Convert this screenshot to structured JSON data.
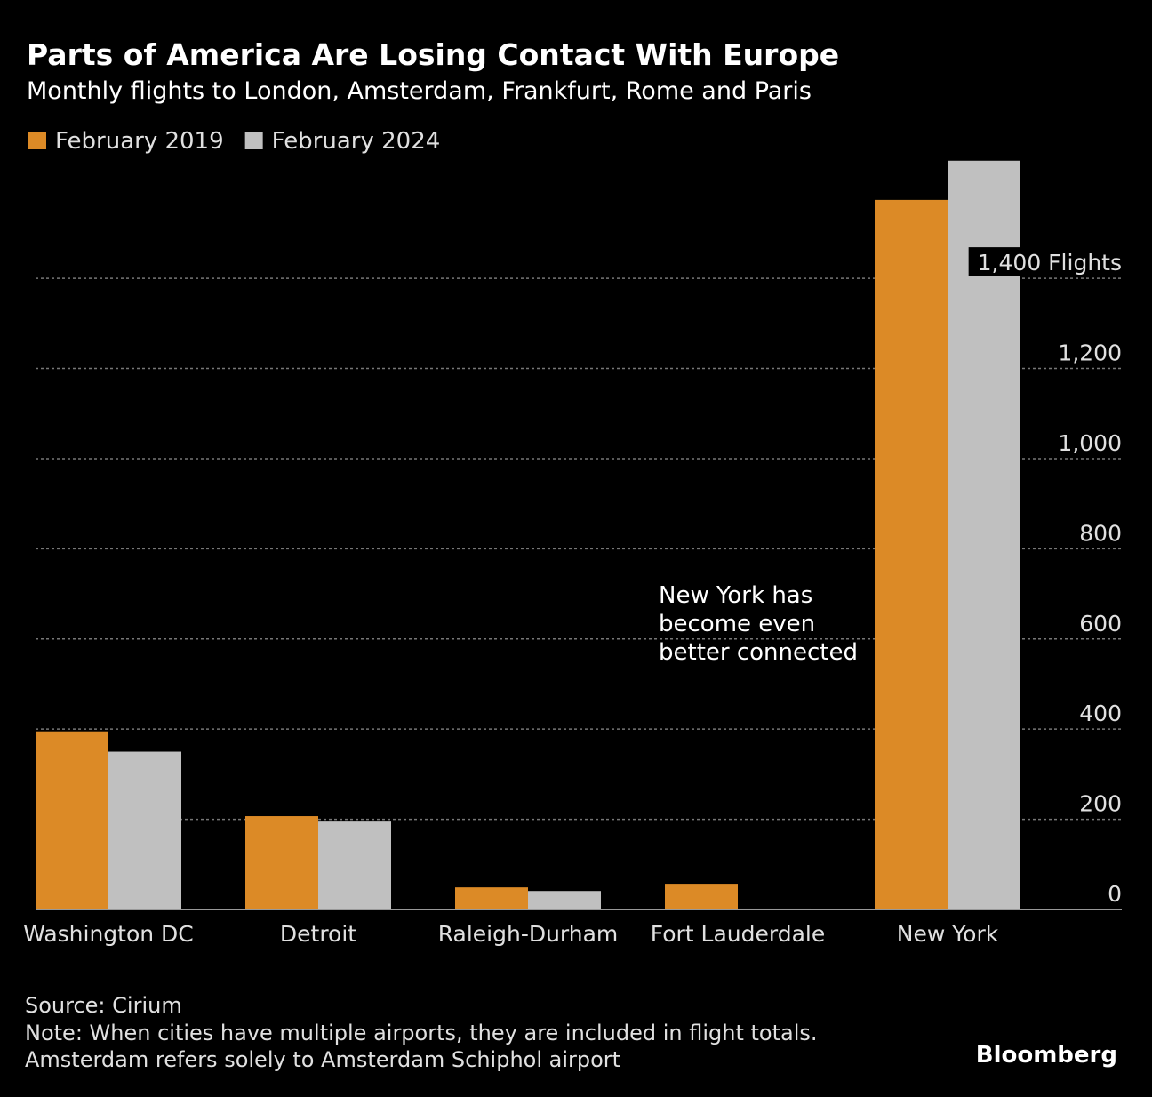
{
  "chart_data": {
    "type": "bar",
    "title": "Parts of America Are Losing Contact With Europe",
    "subtitle": "Monthly flights to London, Amsterdam, Frankfurt, Rome and Paris",
    "categories": [
      "Washington DC",
      "Detroit",
      "Raleigh-Durham",
      "Fort Lauderdale",
      "New York"
    ],
    "series": [
      {
        "name": "February 2019",
        "color": "#dc8a26",
        "values": [
          395,
          207,
          49,
          57,
          1574
        ]
      },
      {
        "name": "February 2024",
        "color": "#c0c0c0",
        "values": [
          350,
          195,
          41,
          2,
          1661
        ]
      }
    ],
    "ylim": [
      0,
      1700
    ],
    "yticks": [
      0,
      200,
      400,
      600,
      800,
      {
        "value": 1000,
        "label": "1,000"
      },
      {
        "value": 1200,
        "label": "1,200"
      },
      {
        "value": 1400,
        "label": "1,400 Flights"
      }
    ],
    "grid": true,
    "legend": "top-left",
    "annotation": [
      "New York has",
      "become even",
      "better connected"
    ],
    "source": "Source: Cirium",
    "note": [
      "Note: When cities have multiple airports, they are included in flight totals.",
      "Amsterdam refers solely to Amsterdam Schiphol airport"
    ],
    "brand": "Bloomberg"
  }
}
